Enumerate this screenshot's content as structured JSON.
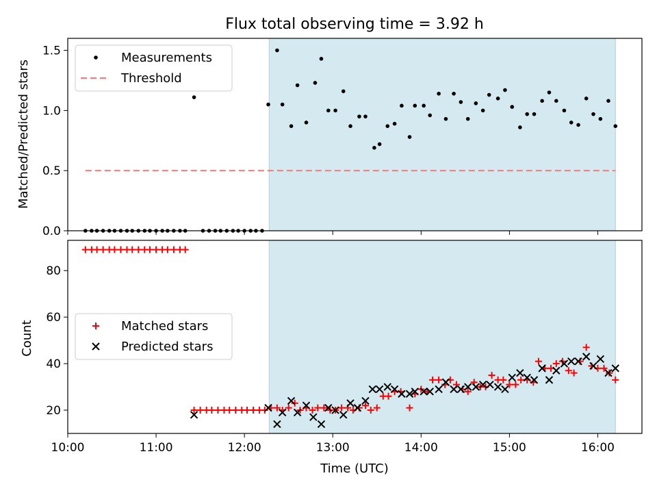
{
  "chart_data": [
    {
      "type": "scatter",
      "title": "Flux total observing time = 3.92 h",
      "ylabel": "Matched/Predicted stars",
      "xlabel": "",
      "x_unit": "hours UTC",
      "xlim": [
        10.0,
        16.5
      ],
      "ylim": [
        0.0,
        1.6
      ],
      "yticks": [
        "0.0",
        "0.5",
        "1.0",
        "1.5"
      ],
      "shaded_region": [
        12.28,
        16.2
      ],
      "shade_color": "#d4eaf0",
      "legend_loc": "upper left",
      "series": [
        {
          "name": "Measurements",
          "marker": "dot",
          "color": "#000000",
          "x": [
            10.2,
            10.27,
            10.33,
            10.4,
            10.47,
            10.53,
            10.6,
            10.67,
            10.73,
            10.8,
            10.87,
            10.93,
            11.0,
            11.07,
            11.13,
            11.2,
            11.27,
            11.33,
            11.43,
            11.53,
            11.6,
            11.67,
            11.73,
            11.8,
            11.87,
            11.93,
            12.0,
            12.07,
            12.13,
            12.2,
            12.27,
            12.37,
            12.43,
            12.53,
            12.6,
            12.7,
            12.8,
            12.87,
            12.95,
            13.03,
            13.12,
            13.2,
            13.3,
            13.37,
            13.47,
            13.53,
            13.62,
            13.7,
            13.78,
            13.87,
            13.93,
            14.03,
            14.1,
            14.2,
            14.28,
            14.37,
            14.45,
            14.53,
            14.62,
            14.7,
            14.77,
            14.87,
            14.95,
            15.03,
            15.12,
            15.2,
            15.28,
            15.37,
            15.45,
            15.53,
            15.62,
            15.7,
            15.78,
            15.87,
            15.95,
            16.03,
            16.12,
            16.2
          ],
          "values": [
            0.0,
            0.0,
            0.0,
            0.0,
            0.0,
            0.0,
            0.0,
            0.0,
            0.0,
            0.0,
            0.0,
            0.0,
            0.0,
            0.0,
            0.0,
            0.0,
            0.0,
            0.0,
            1.11,
            0.0,
            0.0,
            0.0,
            0.0,
            0.0,
            0.0,
            0.0,
            0.0,
            0.0,
            0.0,
            0.0,
            1.05,
            1.5,
            1.05,
            0.87,
            1.21,
            0.9,
            1.23,
            1.43,
            1.0,
            1.0,
            1.16,
            0.87,
            0.95,
            0.95,
            0.69,
            0.72,
            0.87,
            0.89,
            1.04,
            0.78,
            1.04,
            1.04,
            0.96,
            1.14,
            0.93,
            1.14,
            1.07,
            0.93,
            1.06,
            1.0,
            1.13,
            1.1,
            1.17,
            1.03,
            0.86,
            0.97,
            0.97,
            1.08,
            1.15,
            1.08,
            1.0,
            0.9,
            0.88,
            1.1,
            0.97,
            0.93,
            1.08,
            0.87
          ]
        },
        {
          "name": "Threshold",
          "marker": "dashed-line",
          "color": "#f08080",
          "x": [
            10.2,
            16.2
          ],
          "values": [
            0.5,
            0.5
          ]
        }
      ]
    },
    {
      "type": "scatter",
      "title": "",
      "ylabel": "Count",
      "xlabel": "Time (UTC)",
      "x_unit": "hours UTC",
      "xlim": [
        10.0,
        16.5
      ],
      "ylim": [
        10,
        93
      ],
      "yticks": [
        "20",
        "40",
        "60",
        "80"
      ],
      "xticks": [
        "10:00",
        "11:00",
        "12:00",
        "13:00",
        "14:00",
        "15:00",
        "16:00"
      ],
      "shaded_region": [
        12.28,
        16.2
      ],
      "shade_color": "#d4eaf0",
      "legend_loc": "center left",
      "series": [
        {
          "name": "Matched stars",
          "marker": "plus",
          "color": "#ff0000",
          "x": [
            10.2,
            10.27,
            10.33,
            10.4,
            10.47,
            10.53,
            10.6,
            10.67,
            10.73,
            10.8,
            10.87,
            10.93,
            11.0,
            11.07,
            11.13,
            11.2,
            11.27,
            11.33,
            11.43,
            11.5,
            11.57,
            11.63,
            11.7,
            11.77,
            11.83,
            11.9,
            11.97,
            12.03,
            12.1,
            12.17,
            12.23,
            12.3,
            12.37,
            12.43,
            12.5,
            12.57,
            12.63,
            12.7,
            12.77,
            12.83,
            12.9,
            12.97,
            13.03,
            13.1,
            13.17,
            13.23,
            13.3,
            13.37,
            13.43,
            13.5,
            13.57,
            13.63,
            13.7,
            13.77,
            13.87,
            13.93,
            14.0,
            14.07,
            14.13,
            14.2,
            14.27,
            14.33,
            14.4,
            14.47,
            14.53,
            14.6,
            14.67,
            14.73,
            14.8,
            14.87,
            14.93,
            15.0,
            15.07,
            15.13,
            15.2,
            15.27,
            15.33,
            15.4,
            15.47,
            15.53,
            15.6,
            15.67,
            15.73,
            15.8,
            15.87,
            15.93,
            16.0,
            16.07,
            16.13,
            16.2
          ],
          "values": [
            89,
            89,
            89,
            89,
            89,
            89,
            89,
            89,
            89,
            89,
            89,
            89,
            89,
            89,
            89,
            89,
            89,
            89,
            20,
            20,
            20,
            20,
            20,
            20,
            20,
            20,
            20,
            20,
            20,
            20,
            20,
            21,
            21,
            20,
            21,
            23,
            20,
            21,
            20,
            21,
            21,
            20,
            20,
            21,
            21,
            20,
            21,
            22,
            20,
            21,
            26,
            26,
            28,
            28,
            21,
            27,
            29,
            28,
            33,
            33,
            31,
            33,
            31,
            29,
            28,
            32,
            30,
            30,
            35,
            33,
            33,
            31,
            31,
            33,
            33,
            32,
            41,
            38,
            38,
            40,
            41,
            37,
            36,
            41,
            47,
            39,
            38,
            38,
            36,
            33
          ]
        },
        {
          "name": "Predicted stars",
          "marker": "x",
          "color": "#000000",
          "x": [
            11.43,
            12.27,
            12.37,
            12.43,
            12.53,
            12.6,
            12.7,
            12.78,
            12.87,
            12.95,
            13.03,
            13.12,
            13.2,
            13.28,
            13.37,
            13.45,
            13.53,
            13.62,
            13.7,
            13.78,
            13.87,
            13.93,
            14.03,
            14.1,
            14.2,
            14.28,
            14.37,
            14.45,
            14.53,
            14.62,
            14.7,
            14.78,
            14.87,
            14.95,
            15.03,
            15.12,
            15.2,
            15.28,
            15.37,
            15.45,
            15.53,
            15.62,
            15.7,
            15.78,
            15.87,
            15.95,
            16.03,
            16.12,
            16.2
          ],
          "values": [
            18,
            21,
            14,
            19,
            24,
            19,
            22,
            17,
            14,
            21,
            20,
            18,
            23,
            21,
            24,
            29,
            29,
            30,
            29,
            27,
            27,
            28,
            28,
            28,
            29,
            32,
            29,
            29,
            30,
            30,
            31,
            31,
            30,
            29,
            34,
            36,
            34,
            33,
            38,
            33,
            37,
            40,
            41,
            41,
            43,
            39,
            42,
            36,
            38
          ]
        }
      ]
    }
  ]
}
